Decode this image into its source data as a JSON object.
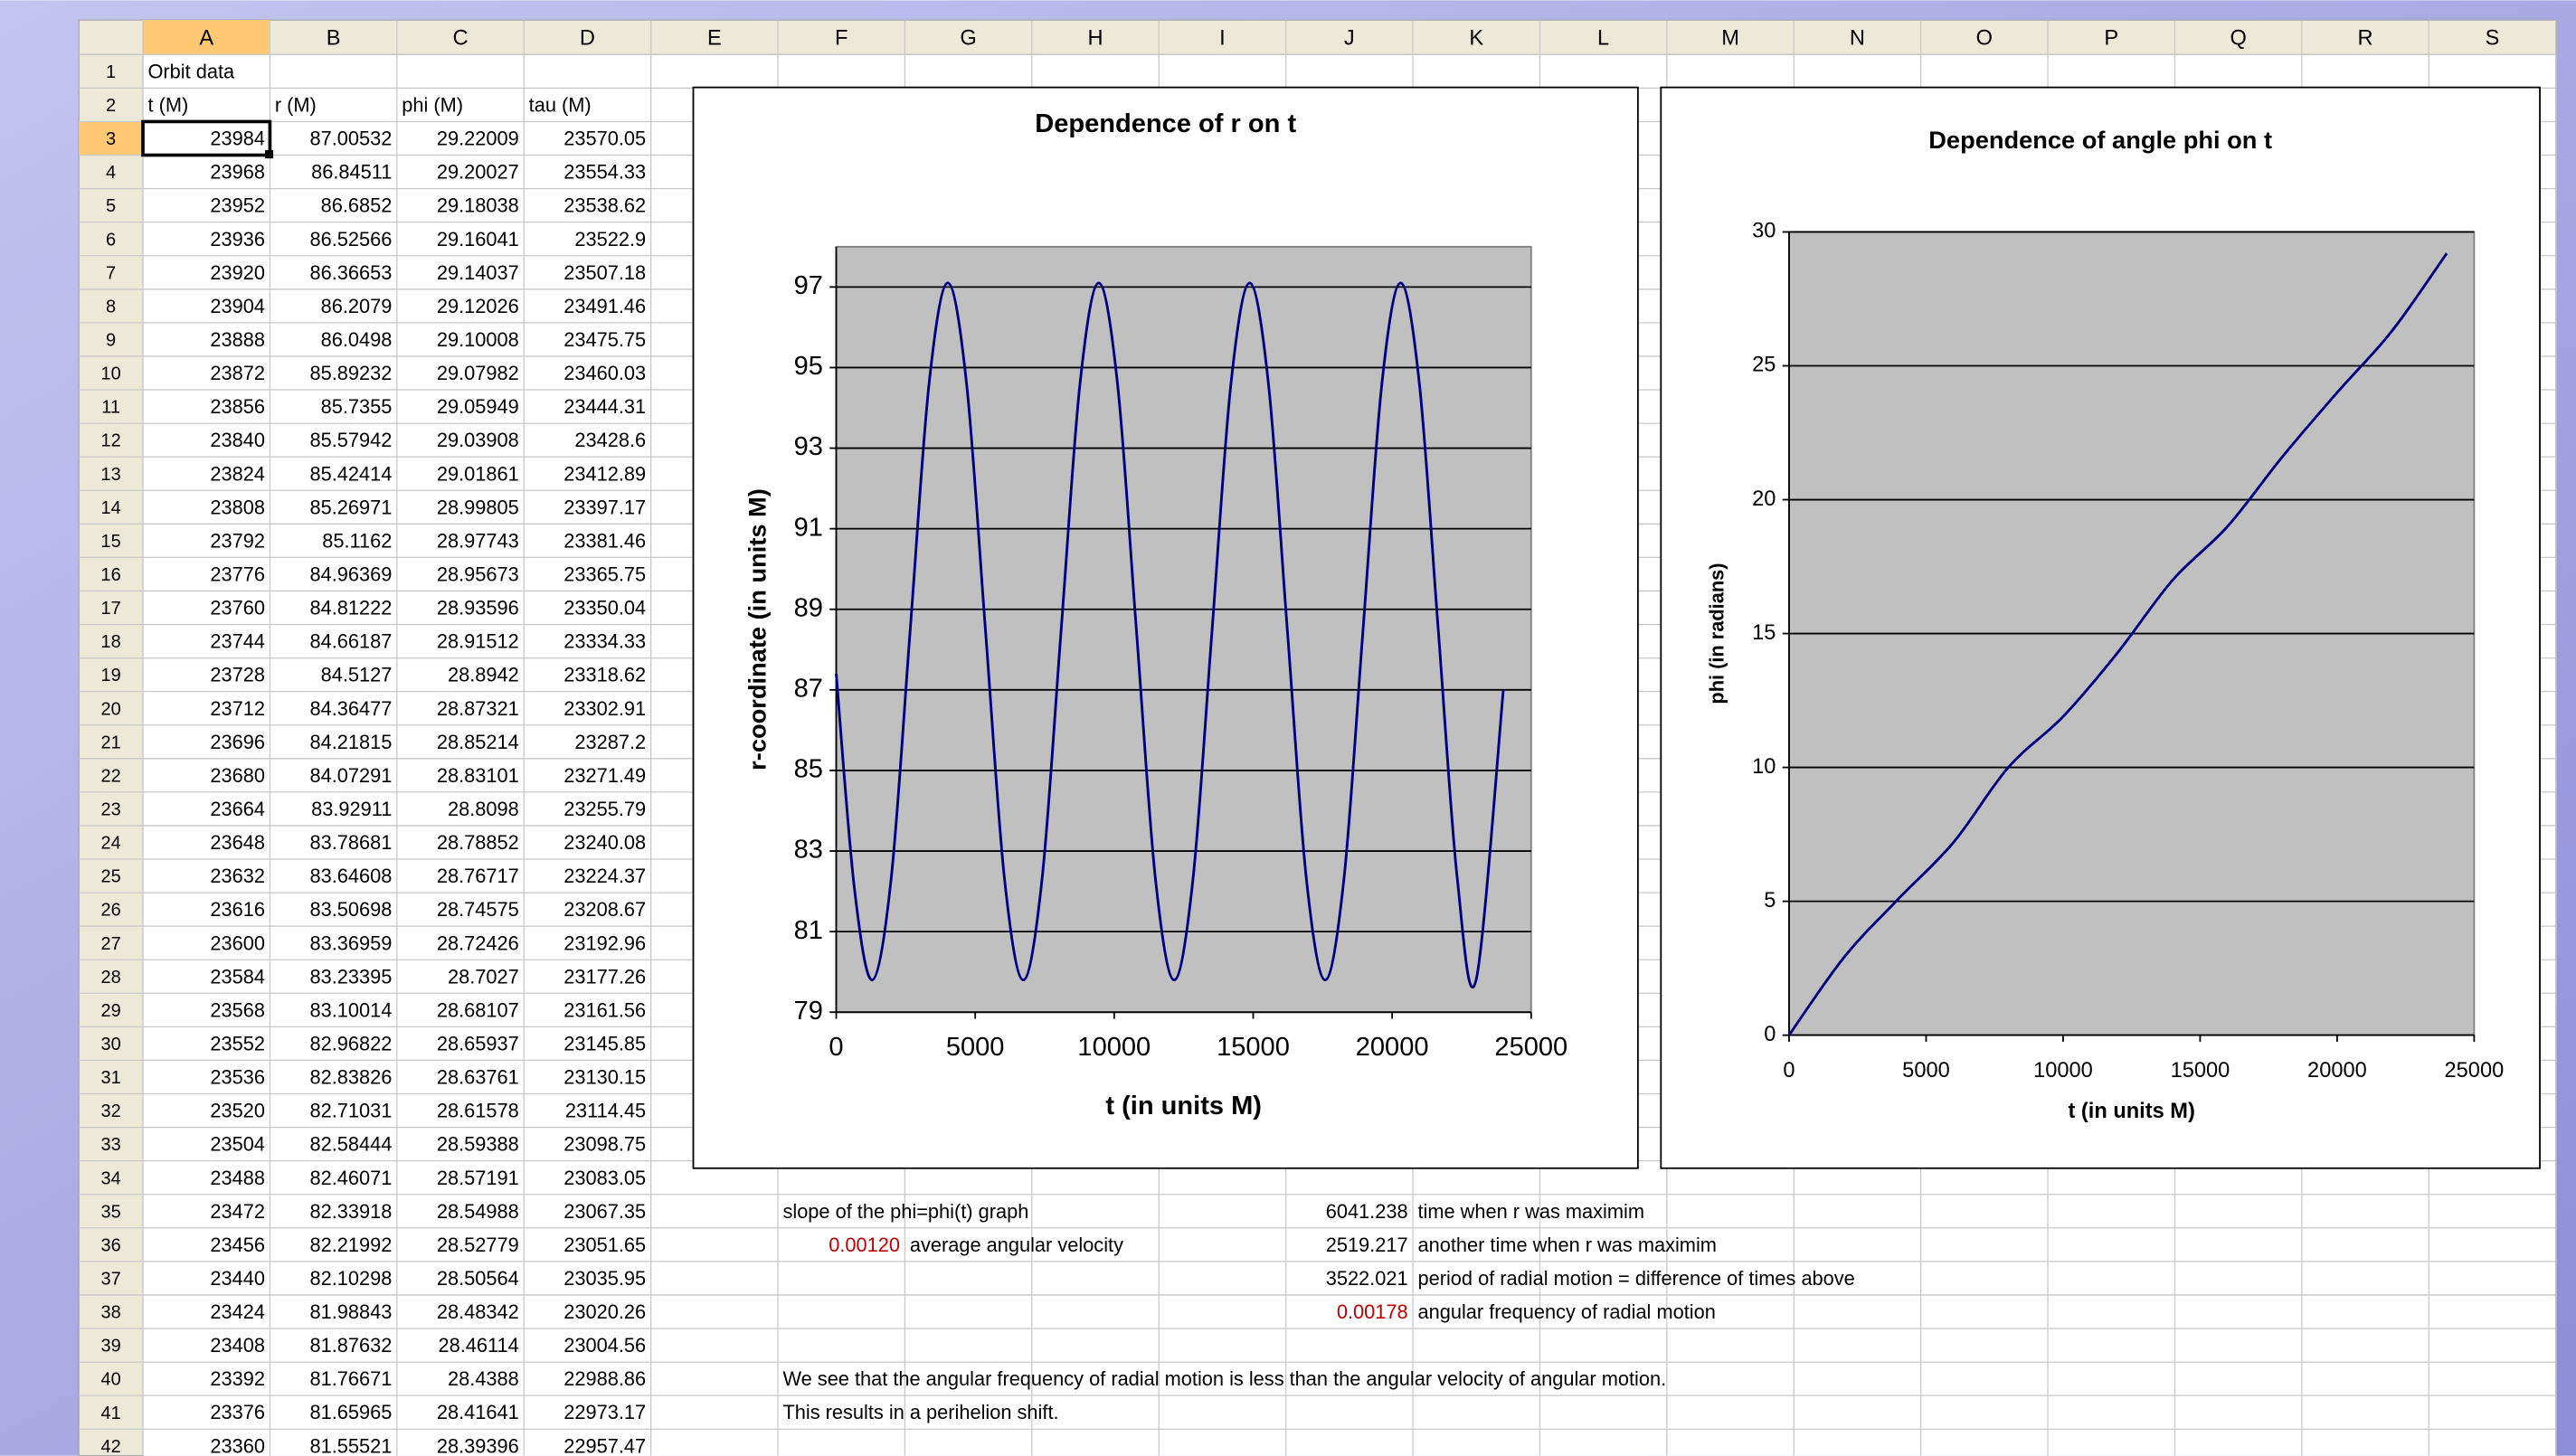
{
  "sheet": {
    "column_headers": [
      "A",
      "B",
      "C",
      "D",
      "E",
      "F",
      "G",
      "H",
      "I",
      "J",
      "K",
      "L",
      "M",
      "N",
      "O",
      "P",
      "Q",
      "R",
      "S"
    ],
    "row_headers": [
      "1",
      "2",
      "3",
      "4",
      "5",
      "6",
      "7",
      "8",
      "9",
      "10",
      "11",
      "12",
      "13",
      "14",
      "15",
      "16",
      "17",
      "18",
      "19",
      "20",
      "21",
      "22",
      "23",
      "24",
      "25",
      "26",
      "27",
      "28",
      "29",
      "30",
      "31",
      "32",
      "33",
      "34",
      "35",
      "36",
      "37",
      "38",
      "39",
      "40",
      "41",
      "42"
    ],
    "title": "Orbit data",
    "header": [
      "t (M)",
      "r (M)",
      "phi (M)",
      "tau (M)"
    ],
    "rows": [
      [
        "23984",
        "87.00532",
        "29.22009",
        "23570.05"
      ],
      [
        "23968",
        "86.84511",
        "29.20027",
        "23554.33"
      ],
      [
        "23952",
        "86.6852",
        "29.18038",
        "23538.62"
      ],
      [
        "23936",
        "86.52566",
        "29.16041",
        "23522.9"
      ],
      [
        "23920",
        "86.36653",
        "29.14037",
        "23507.18"
      ],
      [
        "23904",
        "86.2079",
        "29.12026",
        "23491.46"
      ],
      [
        "23888",
        "86.0498",
        "29.10008",
        "23475.75"
      ],
      [
        "23872",
        "85.89232",
        "29.07982",
        "23460.03"
      ],
      [
        "23856",
        "85.7355",
        "29.05949",
        "23444.31"
      ],
      [
        "23840",
        "85.57942",
        "29.03908",
        "23428.6"
      ],
      [
        "23824",
        "85.42414",
        "29.01861",
        "23412.89"
      ],
      [
        "23808",
        "85.26971",
        "28.99805",
        "23397.17"
      ],
      [
        "23792",
        "85.1162",
        "28.97743",
        "23381.46"
      ],
      [
        "23776",
        "84.96369",
        "28.95673",
        "23365.75"
      ],
      [
        "23760",
        "84.81222",
        "28.93596",
        "23350.04"
      ],
      [
        "23744",
        "84.66187",
        "28.91512",
        "23334.33"
      ],
      [
        "23728",
        "84.5127",
        "28.8942",
        "23318.62"
      ],
      [
        "23712",
        "84.36477",
        "28.87321",
        "23302.91"
      ],
      [
        "23696",
        "84.21815",
        "28.85214",
        "23287.2"
      ],
      [
        "23680",
        "84.07291",
        "28.83101",
        "23271.49"
      ],
      [
        "23664",
        "83.92911",
        "28.8098",
        "23255.79"
      ],
      [
        "23648",
        "83.78681",
        "28.78852",
        "23240.08"
      ],
      [
        "23632",
        "83.64608",
        "28.76717",
        "23224.37"
      ],
      [
        "23616",
        "83.50698",
        "28.74575",
        "23208.67"
      ],
      [
        "23600",
        "83.36959",
        "28.72426",
        "23192.96"
      ],
      [
        "23584",
        "83.23395",
        "28.7027",
        "23177.26"
      ],
      [
        "23568",
        "83.10014",
        "28.68107",
        "23161.56"
      ],
      [
        "23552",
        "82.96822",
        "28.65937",
        "23145.85"
      ],
      [
        "23536",
        "82.83826",
        "28.63761",
        "23130.15"
      ],
      [
        "23520",
        "82.71031",
        "28.61578",
        "23114.45"
      ],
      [
        "23504",
        "82.58444",
        "28.59388",
        "23098.75"
      ],
      [
        "23488",
        "82.46071",
        "28.57191",
        "23083.05"
      ],
      [
        "23472",
        "82.33918",
        "28.54988",
        "23067.35"
      ],
      [
        "23456",
        "82.21992",
        "28.52779",
        "23051.65"
      ],
      [
        "23440",
        "82.10298",
        "28.50564",
        "23035.95"
      ],
      [
        "23424",
        "81.98843",
        "28.48342",
        "23020.26"
      ],
      [
        "23408",
        "81.87632",
        "28.46114",
        "23004.56"
      ],
      [
        "23392",
        "81.76671",
        "28.4388",
        "22988.86"
      ],
      [
        "23376",
        "81.65965",
        "28.41641",
        "22973.17"
      ],
      [
        "23360",
        "81.55521",
        "28.39396",
        "22957.47"
      ]
    ],
    "notes": [
      {
        "cell": "F35",
        "text": "slope of the phi=phi(t) graph"
      },
      {
        "cell": "F36",
        "text": "0.00120",
        "color": "#c00000"
      },
      {
        "cell": "G36",
        "text": "average angular velocity"
      },
      {
        "cell": "J35",
        "text": "6041.238"
      },
      {
        "cell": "K35",
        "text": "time when r was maximim"
      },
      {
        "cell": "J36",
        "text": "2519.217"
      },
      {
        "cell": "K36",
        "text": "another time when r was maximim"
      },
      {
        "cell": "J37",
        "text": "3522.021"
      },
      {
        "cell": "K37",
        "text": "period of radial motion = difference of times above"
      },
      {
        "cell": "J38",
        "text": "0.00178",
        "color": "#c00000"
      },
      {
        "cell": "K38",
        "text": "angular frequency of radial motion"
      },
      {
        "cell": "F40",
        "text": "We see that the angular frequency of radial motion is less than the angular velocity of angular motion."
      },
      {
        "cell": "F41",
        "text": "This results in a perihelion shift."
      }
    ]
  },
  "chart_data": [
    {
      "type": "line",
      "title": "Dependence of r on t",
      "x_label": "t  (in units M)",
      "y_label": "r-coordinate (in units M)",
      "x": [
        0,
        650,
        1300,
        1979,
        2658,
        3336,
        4015,
        4694,
        5373,
        6051,
        6730,
        7409,
        8088,
        8766,
        9445,
        10124,
        10803,
        11481,
        12160,
        12839,
        13518,
        14196,
        14875,
        15554,
        16233,
        16911,
        17590,
        18269,
        18948,
        19626,
        20305,
        20984,
        21663,
        22341,
        23020,
        24000
      ],
      "values": [
        87.4,
        82.1,
        79.8,
        82.33,
        88.45,
        94.57,
        97.1,
        94.57,
        88.45,
        82.33,
        79.8,
        82.33,
        88.45,
        94.57,
        97.1,
        94.57,
        88.45,
        82.33,
        79.8,
        82.33,
        88.45,
        94.57,
        97.1,
        94.57,
        88.45,
        82.33,
        79.8,
        82.33,
        88.45,
        94.57,
        97.1,
        94.57,
        88.45,
        82.33,
        79.8,
        87.0
      ],
      "color": "#000080",
      "xlim": [
        0,
        25000
      ],
      "xticks": [
        0,
        5000,
        10000,
        15000,
        20000,
        25000
      ],
      "ylim": [
        79,
        98
      ],
      "yticks": [
        79,
        81,
        83,
        85,
        87,
        89,
        91,
        93,
        95,
        97
      ],
      "grid": true,
      "plot_color": "#c0c0c0"
    },
    {
      "type": "line",
      "title": "Dependence of angle phi on t",
      "x_label": "t (in units M)",
      "y_label": "phi (in radians)",
      "x": [
        0,
        2000,
        4000,
        6000,
        8000,
        10000,
        12000,
        14000,
        16000,
        18000,
        20000,
        22000,
        24000
      ],
      "values": [
        0,
        2.9,
        5.1,
        7.2,
        10.0,
        11.9,
        14.3,
        17.0,
        19.0,
        21.6,
        24.0,
        26.3,
        29.2
      ],
      "color": "#000080",
      "xlim": [
        0,
        25000
      ],
      "xticks": [
        0,
        5000,
        10000,
        15000,
        20000,
        25000
      ],
      "ylim": [
        0,
        30
      ],
      "yticks": [
        0,
        5,
        10,
        15,
        20,
        25,
        30
      ],
      "grid": true,
      "plot_color": "#c0c0c0"
    }
  ]
}
